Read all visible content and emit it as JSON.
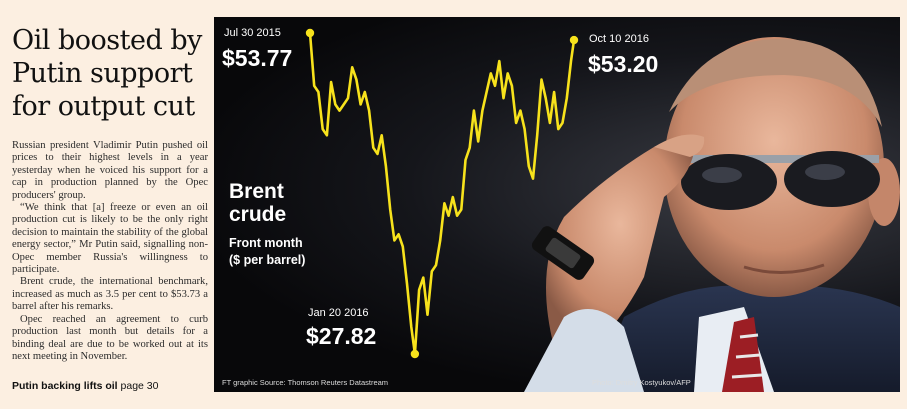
{
  "article": {
    "headline": "Oil boosted by Putin support for output cut",
    "paragraphs": [
      "Russian president Vladimir Putin pushed oil prices to their highest levels in a year yesterday when he voiced his support for a cap in production planned by the Opec producers' group.",
      "“We think that [a] freeze or even an oil production cut is likely to be the only right decision to maintain the stability of the global energy sector,” Mr Putin said, signalling non-Opec member Russia's willingness to participate.",
      "Brent crude, the international benchmark, increased as much as 3.5 per cent to $53.73 a barrel after his remarks.",
      "Opec reached an agreement to curb production last month but details for a binding deal are due to be worked out at its next meeting in November."
    ],
    "teaser_bold": "Putin backing lifts oil",
    "teaser_rest": " page 30"
  },
  "graphic": {
    "credit": "FT graphic  Source: Thomson Reuters Datastream",
    "photo_credit": "Photo: Dmitry Kostyukov/AFP",
    "colors": {
      "line": "#f7e21c",
      "background": "#08080a",
      "text": "#ffffff"
    }
  },
  "chart_data": {
    "type": "line",
    "title": "Brent crude",
    "subtitle_line1": "Front month",
    "subtitle_line2": "($ per barrel)",
    "annotations": [
      {
        "date": "Jul 30 2015",
        "value": "$53.77"
      },
      {
        "date": "Jan 20 2016",
        "value": "$27.82"
      },
      {
        "date": "Oct 10 2016",
        "value": "$53.20"
      }
    ],
    "x": [
      "2015-07-30",
      "2015-08-06",
      "2015-08-13",
      "2015-08-20",
      "2015-08-27",
      "2015-09-03",
      "2015-09-10",
      "2015-09-17",
      "2015-09-24",
      "2015-10-01",
      "2015-10-08",
      "2015-10-15",
      "2015-10-22",
      "2015-10-29",
      "2015-11-05",
      "2015-11-12",
      "2015-11-19",
      "2015-11-26",
      "2015-12-03",
      "2015-12-10",
      "2015-12-17",
      "2015-12-24",
      "2015-12-31",
      "2016-01-07",
      "2016-01-14",
      "2016-01-20",
      "2016-01-27",
      "2016-02-03",
      "2016-02-10",
      "2016-02-17",
      "2016-02-24",
      "2016-03-02",
      "2016-03-09",
      "2016-03-16",
      "2016-03-23",
      "2016-03-30",
      "2016-04-06",
      "2016-04-13",
      "2016-04-20",
      "2016-04-27",
      "2016-05-04",
      "2016-05-11",
      "2016-05-18",
      "2016-05-25",
      "2016-06-01",
      "2016-06-08",
      "2016-06-15",
      "2016-06-22",
      "2016-06-29",
      "2016-07-06",
      "2016-07-13",
      "2016-07-20",
      "2016-07-27",
      "2016-08-03",
      "2016-08-10",
      "2016-08-17",
      "2016-08-24",
      "2016-08-31",
      "2016-09-07",
      "2016-09-14",
      "2016-09-21",
      "2016-09-28",
      "2016-10-05",
      "2016-10-10"
    ],
    "y": [
      53.77,
      49.5,
      49.0,
      46.0,
      45.5,
      49.8,
      48.0,
      47.5,
      48.0,
      48.5,
      51.0,
      50.0,
      48.0,
      49.0,
      47.5,
      44.5,
      44.0,
      45.5,
      43.0,
      39.5,
      37.0,
      37.5,
      36.5,
      33.5,
      30.0,
      27.82,
      33.0,
      34.0,
      31.0,
      34.5,
      35.0,
      37.0,
      40.0,
      39.0,
      40.5,
      39.0,
      39.5,
      43.5,
      44.5,
      47.5,
      45.0,
      47.5,
      49.0,
      50.5,
      49.5,
      51.5,
      48.5,
      50.5,
      49.5,
      46.5,
      47.5,
      46.0,
      43.0,
      42.0,
      45.5,
      50.0,
      48.5,
      46.5,
      49.0,
      46.0,
      46.5,
      48.5,
      51.5,
      53.2
    ]
  }
}
